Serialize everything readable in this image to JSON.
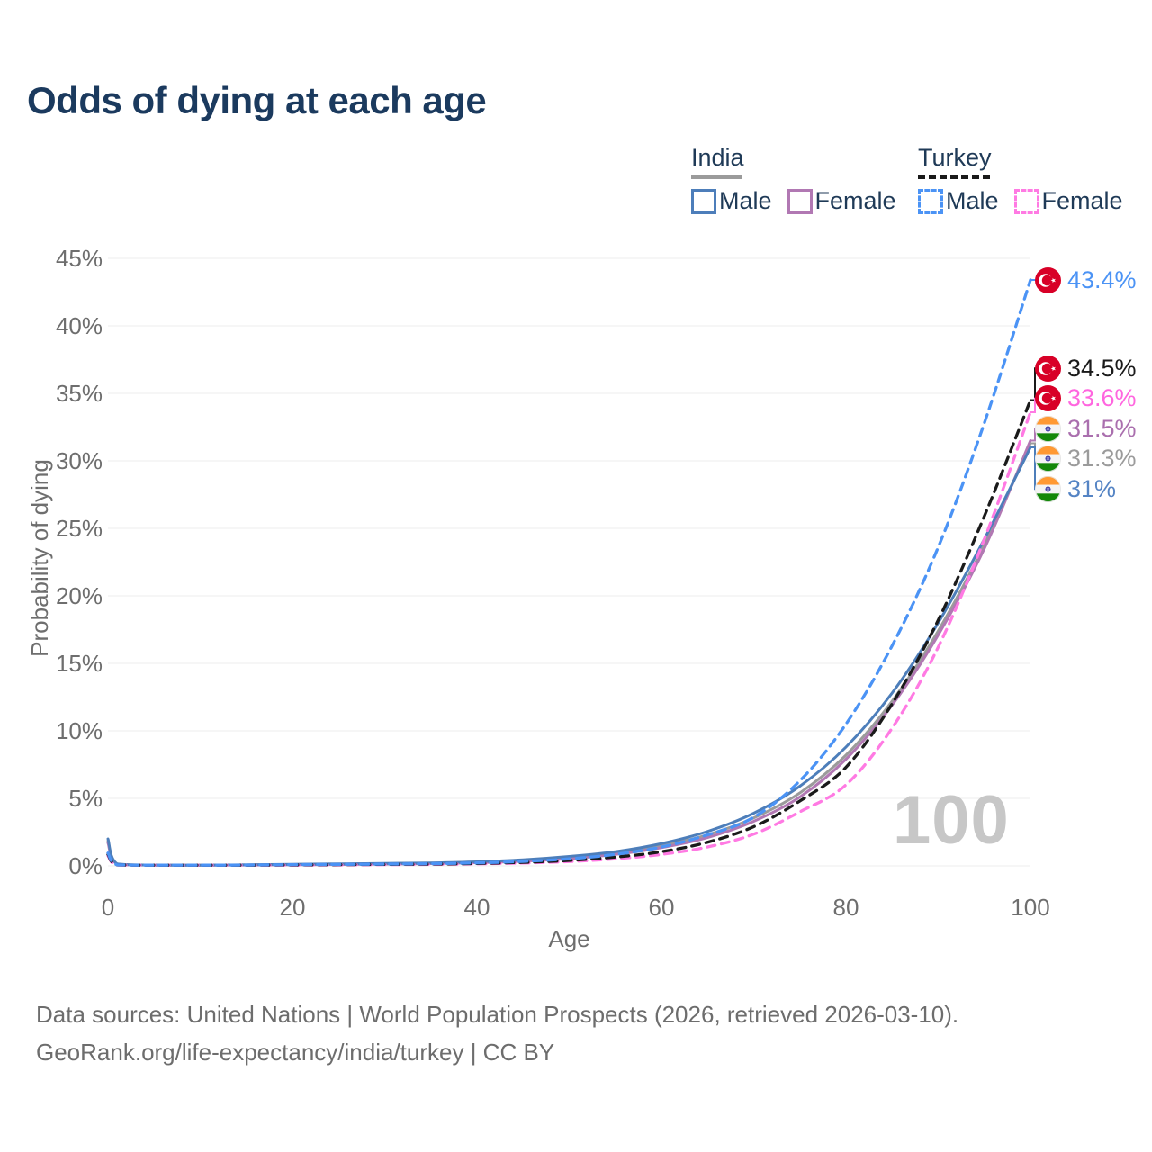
{
  "title": "Odds of dying at each age",
  "watermark": "100",
  "legend": {
    "groups": [
      {
        "name": "India",
        "line_style": "solid",
        "items": [
          {
            "label": "Male"
          },
          {
            "label": "Female"
          }
        ]
      },
      {
        "name": "Turkey",
        "line_style": "dashed",
        "items": [
          {
            "label": "Male"
          },
          {
            "label": "Female"
          }
        ]
      }
    ]
  },
  "footer": {
    "line1": "Data sources: United Nations | World Population Prospects (2026, retrieved 2026-03-10).",
    "line2": "GeoRank.org/life-expectancy/india/turkey | CC BY"
  },
  "colors": {
    "title": "#1b3a5e",
    "legend_text": "#1f3a57",
    "axis_text": "#6e6e6e",
    "gridline": "#ededed",
    "watermark": "#c7c7c7",
    "footer_text": "#6d6d6d",
    "turkey_flag_red": "#d80027",
    "india_flag_saffron": "#ff9933",
    "india_flag_green": "#138808",
    "india_flag_navy": "#06038d"
  },
  "chart_data": {
    "type": "line",
    "title": "Odds of dying at each age",
    "xlabel": "Age",
    "ylabel": "Probability of dying",
    "xlim": [
      0,
      100
    ],
    "ylim": [
      0,
      45
    ],
    "x_ticks": [
      0,
      20,
      40,
      60,
      80,
      100
    ],
    "y_ticks": [
      0,
      5,
      10,
      15,
      20,
      25,
      30,
      35,
      40,
      45
    ],
    "y_tick_suffix": "%",
    "grid": "horizontal",
    "legend_position": "top-right",
    "ages": [
      0,
      1,
      5,
      10,
      15,
      20,
      25,
      30,
      35,
      40,
      45,
      50,
      55,
      60,
      65,
      70,
      75,
      80,
      85,
      90,
      95,
      100
    ],
    "series": [
      {
        "name": "Turkey Male",
        "country": "Turkey",
        "sex": "male",
        "style": "dashed",
        "color": "#4b93f5",
        "label_color": "#4b93f5",
        "flag": "turkey",
        "end_label": "43.4%",
        "values": [
          0.95,
          0.08,
          0.04,
          0.04,
          0.06,
          0.09,
          0.11,
          0.13,
          0.16,
          0.22,
          0.33,
          0.52,
          0.85,
          1.4,
          2.3,
          3.6,
          6.3,
          10.5,
          16.3,
          23.6,
          32.8,
          43.4
        ]
      },
      {
        "name": "Turkey Both sexes",
        "country": "Turkey",
        "sex": "both",
        "style": "dashed",
        "color": "#1a1a1a",
        "label_color": "#1a1a1a",
        "flag": "turkey",
        "end_label": "34.5%",
        "values": [
          0.85,
          0.07,
          0.035,
          0.035,
          0.05,
          0.07,
          0.09,
          0.11,
          0.13,
          0.18,
          0.26,
          0.4,
          0.65,
          1.05,
          1.75,
          2.9,
          4.8,
          7.3,
          12.0,
          18.2,
          25.9,
          34.5
        ]
      },
      {
        "name": "Turkey Female",
        "country": "Turkey",
        "sex": "female",
        "style": "dashed",
        "color": "#ff7ae3",
        "label_color": "#ff66df",
        "flag": "turkey",
        "end_label": "33.6%",
        "values": [
          0.75,
          0.06,
          0.03,
          0.03,
          0.04,
          0.05,
          0.07,
          0.09,
          0.11,
          0.15,
          0.21,
          0.32,
          0.52,
          0.85,
          1.4,
          2.35,
          4.0,
          6.0,
          10.2,
          16.2,
          24.2,
          33.6
        ]
      },
      {
        "name": "India Female",
        "country": "India",
        "sex": "female",
        "style": "solid",
        "color": "#b178b3",
        "label_color": "#aa6fae",
        "flag": "india",
        "end_label": "31.5%",
        "values": [
          1.7,
          0.13,
          0.05,
          0.04,
          0.06,
          0.08,
          0.1,
          0.13,
          0.17,
          0.23,
          0.34,
          0.53,
          0.85,
          1.35,
          2.1,
          3.3,
          5.1,
          7.9,
          11.9,
          17.1,
          23.5,
          31.5
        ]
      },
      {
        "name": "India Both sexes",
        "country": "India",
        "sex": "both",
        "style": "solid",
        "color": "#9b9b9b",
        "label_color": "#9b9b9b",
        "flag": "india",
        "end_label": "31.3%",
        "values": [
          1.85,
          0.14,
          0.055,
          0.045,
          0.07,
          0.1,
          0.13,
          0.16,
          0.2,
          0.27,
          0.4,
          0.62,
          0.95,
          1.5,
          2.3,
          3.55,
          5.4,
          8.2,
          12.2,
          17.4,
          23.8,
          31.3
        ]
      },
      {
        "name": "India Male",
        "country": "India",
        "sex": "male",
        "style": "solid",
        "color": "#4d7eba",
        "label_color": "#5584c4",
        "flag": "india",
        "end_label": "31%",
        "values": [
          2.0,
          0.15,
          0.06,
          0.05,
          0.08,
          0.12,
          0.15,
          0.18,
          0.22,
          0.3,
          0.45,
          0.7,
          1.05,
          1.65,
          2.55,
          3.9,
          5.9,
          8.8,
          12.8,
          18.0,
          24.2,
          31.0
        ]
      }
    ]
  }
}
